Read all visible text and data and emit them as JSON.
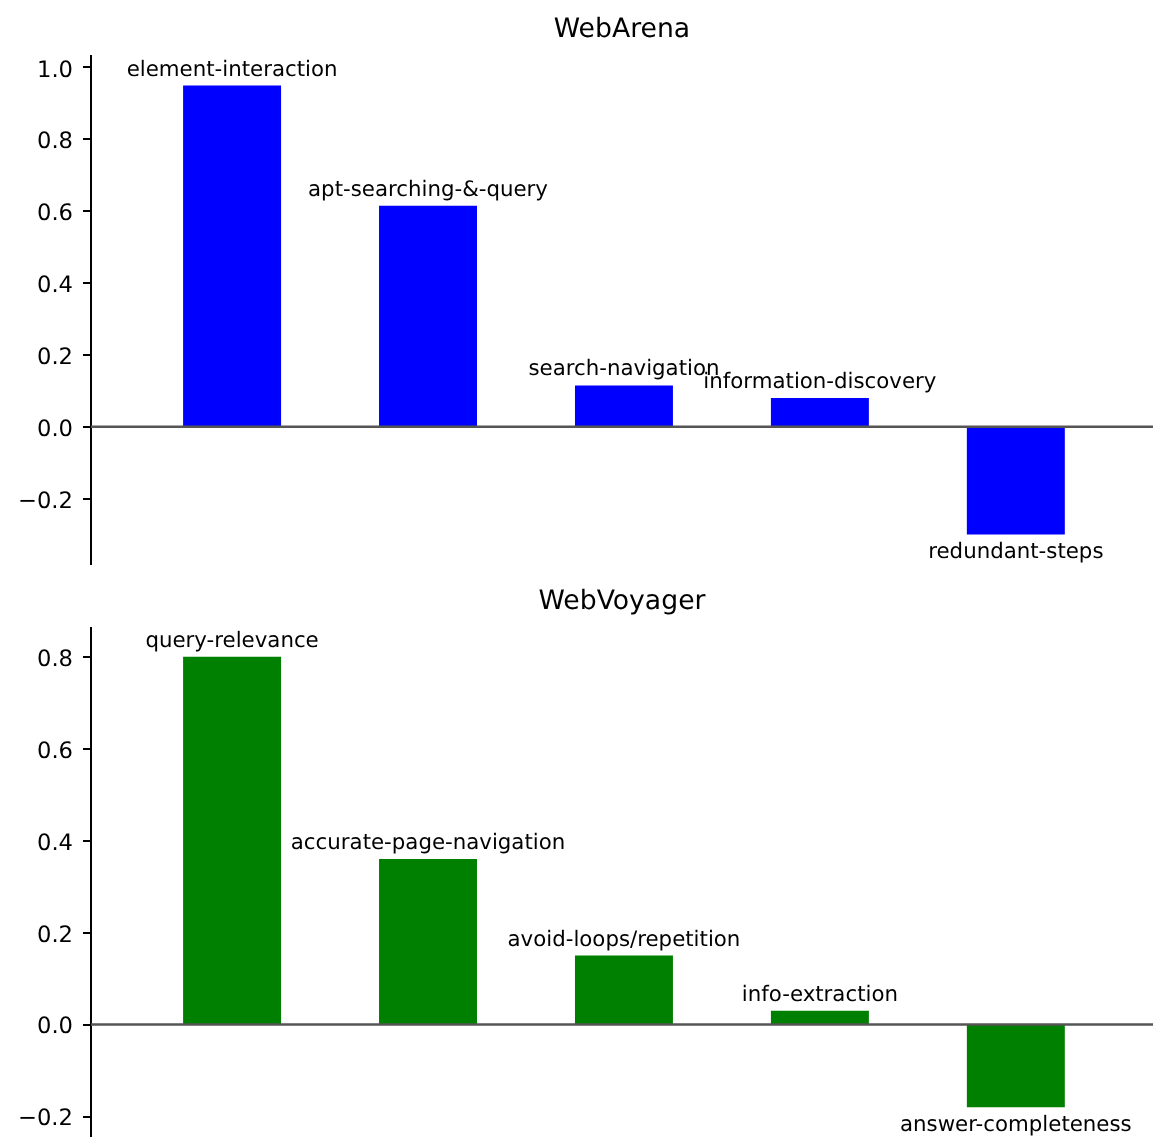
{
  "chart_data": [
    {
      "type": "bar",
      "title": "WebArena",
      "categories": [
        "element-interaction",
        "apt-searching-&-query",
        "search-navigation",
        "information-discovery",
        "redundant-steps"
      ],
      "series": [
        {
          "color": "#0000ff",
          "values": [
            0.95,
            0.615,
            0.115,
            0.08,
            -0.3
          ]
        }
      ],
      "ylim": [
        -0.385,
        1.035
      ],
      "yticks": [
        {
          "value": -0.2,
          "label": "−0.2"
        },
        {
          "value": 0,
          "label": "0.0"
        },
        0.2,
        0.4,
        0.6,
        0.8,
        {
          "value": 1,
          "label": "1.0"
        }
      ],
      "tick_labels": "y",
      "grid": false,
      "ref_lines": [
        {
          "axis": "y",
          "value": 0,
          "color": "#555555"
        }
      ]
    },
    {
      "type": "bar",
      "title": "WebVoyager",
      "categories": [
        "query-relevance",
        "accurate-page-navigation",
        "avoid-loops/repetition",
        "info-extraction",
        "answer-completeness"
      ],
      "series": [
        {
          "color": "#008000",
          "values": [
            0.8,
            0.36,
            0.15,
            0.03,
            -0.18
          ]
        }
      ],
      "ylim": [
        -0.245,
        0.865
      ],
      "yticks": [
        {
          "value": -0.2,
          "label": "−0.2"
        },
        {
          "value": 0,
          "label": "0.0"
        },
        0.2,
        0.4,
        0.6,
        0.8
      ],
      "tick_labels": "y",
      "grid": false,
      "ref_lines": [
        {
          "axis": "y",
          "value": 0,
          "color": "#555555"
        }
      ]
    }
  ]
}
